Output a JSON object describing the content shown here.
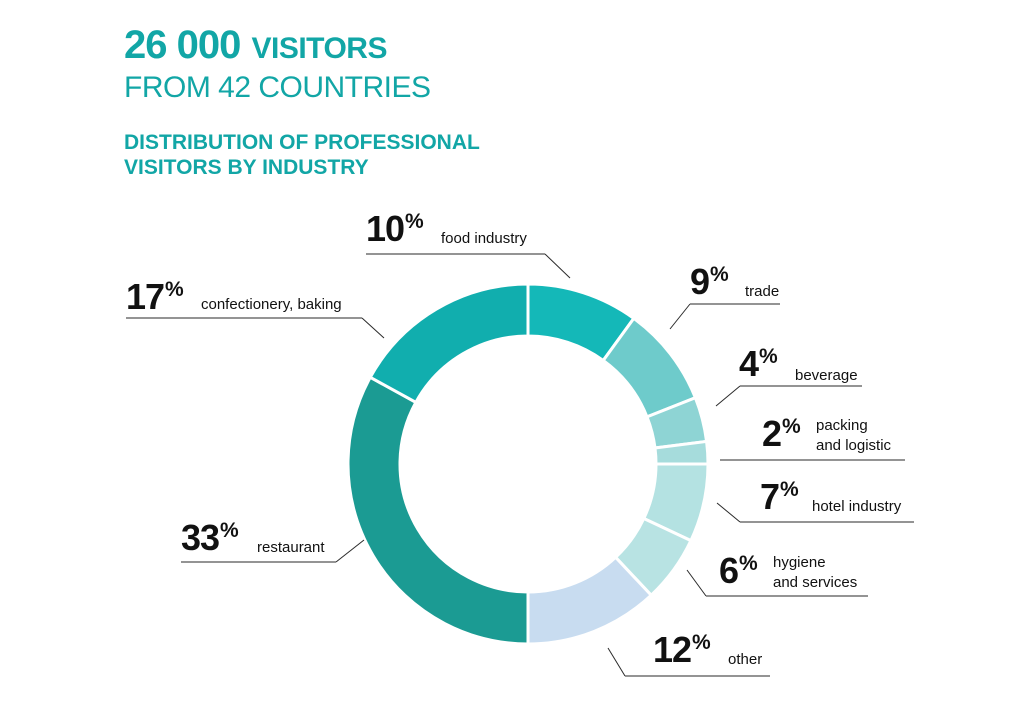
{
  "header": {
    "visitors_count": "26 000",
    "visitors_word": "VISITORS",
    "countries_line": "FROM 42 COUNTRIES",
    "subtitle_line1": "DISTRIBUTION OF PROFESSIONAL",
    "subtitle_line2": "VISITORS BY INDUSTRY"
  },
  "chart_data": {
    "type": "pie",
    "title": "",
    "unit": "%",
    "categories": [
      "food industry",
      "trade",
      "beverage",
      "packing and logistic",
      "hotel industry",
      "hygiene and services",
      "other",
      "restaurant",
      "confectionery, baking"
    ],
    "values": [
      10,
      9,
      4,
      2,
      7,
      6,
      12,
      33,
      17
    ],
    "colors": [
      "#14b8b8",
      "#6ecbcb",
      "#8ed4d4",
      "#a6dcdc",
      "#b4e2e2",
      "#b8e3e3",
      "#c8dcf0",
      "#1b9b93",
      "#11aeae"
    ],
    "labels": {
      "food": {
        "pct": "10",
        "text": "food industry"
      },
      "trade": {
        "pct": "9",
        "text": "trade"
      },
      "beverage": {
        "pct": "4",
        "text": "beverage"
      },
      "packing": {
        "pct": "2",
        "line1": "packing",
        "line2": "and logistic"
      },
      "hotel": {
        "pct": "7",
        "text": "hotel industry"
      },
      "hygiene": {
        "pct": "6",
        "line1": "hygiene",
        "line2": "and services"
      },
      "other": {
        "pct": "12",
        "text": "other"
      },
      "restaurant": {
        "pct": "33",
        "text": "restaurant"
      },
      "confectionery": {
        "pct": "17",
        "text": "confectionery, baking"
      }
    },
    "percent_sign": "%"
  }
}
